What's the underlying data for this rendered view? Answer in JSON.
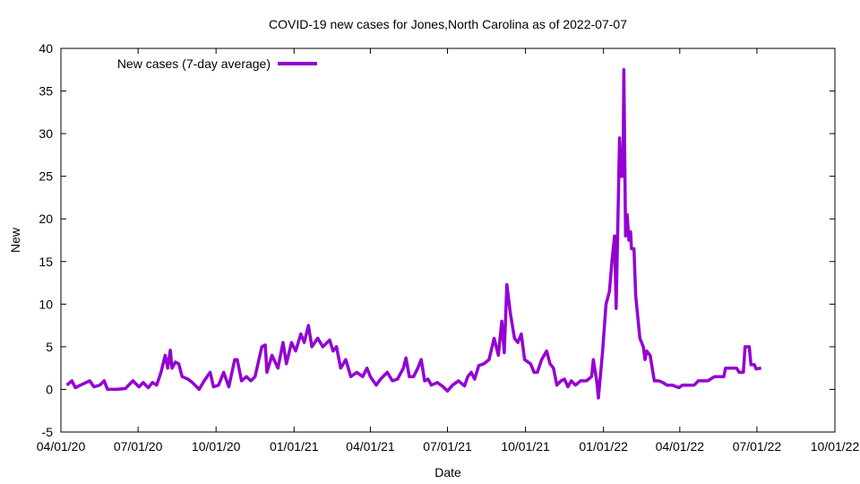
{
  "chart_data": {
    "type": "line",
    "title": "COVID-19 new cases for Jones,North Carolina as of 2022-07-07",
    "xlabel": "Date",
    "ylabel": "New",
    "x_unit": "days since 2020-04-01",
    "xlim": [
      0,
      913
    ],
    "ylim": [
      -5,
      40
    ],
    "yticks": [
      -5,
      0,
      5,
      10,
      15,
      20,
      25,
      30,
      35,
      40
    ],
    "xticks": [
      {
        "day": 0,
        "label": "04/01/20"
      },
      {
        "day": 91,
        "label": "07/01/20"
      },
      {
        "day": 183,
        "label": "10/01/20"
      },
      {
        "day": 275,
        "label": "01/01/21"
      },
      {
        "day": 365,
        "label": "04/01/21"
      },
      {
        "day": 456,
        "label": "07/01/21"
      },
      {
        "day": 548,
        "label": "10/01/21"
      },
      {
        "day": 640,
        "label": "01/01/22"
      },
      {
        "day": 730,
        "label": "04/01/22"
      },
      {
        "day": 821,
        "label": "07/01/22"
      },
      {
        "day": 913,
        "label": "10/01/22"
      }
    ],
    "grid": false,
    "legend_position": "top-left",
    "series": [
      {
        "name": "New cases (7-day average)",
        "color": "#9400d3",
        "x": [
          7,
          13,
          17,
          23,
          34,
          39,
          46,
          51,
          55,
          66,
          76,
          85,
          92,
          97,
          103,
          108,
          113,
          118,
          123,
          126,
          129,
          131,
          135,
          139,
          143,
          150,
          155,
          163,
          169,
          176,
          180,
          186,
          192,
          198,
          205,
          208,
          213,
          219,
          224,
          229,
          237,
          241,
          243,
          249,
          256,
          262,
          266,
          272,
          277,
          283,
          287,
          292,
          296,
          303,
          309,
          317,
          321,
          325,
          330,
          336,
          342,
          349,
          356,
          361,
          365,
          372,
          377,
          385,
          391,
          397,
          404,
          407,
          411,
          416,
          421,
          425,
          429,
          433,
          437,
          444,
          451,
          456,
          462,
          469,
          476,
          480,
          484,
          488,
          493,
          499,
          505,
          511,
          516,
          520,
          523,
          526,
          530,
          535,
          539,
          543,
          547,
          554,
          558,
          562,
          567,
          573,
          577,
          581,
          585,
          590,
          594,
          598,
          602,
          607,
          613,
          620,
          626,
          628,
          632,
          634,
          639,
          643,
          647,
          650,
          653,
          655,
          659,
          661,
          663,
          664,
          666,
          668,
          670,
          672,
          673,
          676,
          678,
          683,
          687,
          689,
          691,
          695,
          700,
          705,
          710,
          715,
          721,
          729,
          733,
          742,
          747,
          752,
          763,
          771,
          782,
          784,
          797,
          800,
          805,
          807,
          812,
          814,
          818,
          820,
          826
        ],
        "y": [
          0.5,
          1.0,
          0.2,
          0.5,
          1.0,
          0.3,
          0.5,
          1.0,
          0,
          0,
          0.1,
          1.0,
          0.3,
          0.8,
          0.2,
          0.8,
          0.5,
          2,
          4,
          2.5,
          4.6,
          2.5,
          3.2,
          3,
          1.5,
          1.2,
          0.8,
          0,
          1,
          2,
          0.3,
          0.5,
          2,
          0.3,
          3.5,
          3.5,
          1.0,
          1.5,
          1.0,
          1.5,
          5,
          5.2,
          2.0,
          4,
          2.5,
          5.5,
          3,
          5.5,
          4.5,
          6.5,
          5.5,
          7.5,
          5,
          6,
          5,
          5.8,
          4.5,
          5,
          2.5,
          3.5,
          1.5,
          2,
          1.5,
          2.5,
          1.5,
          0.5,
          1.2,
          2,
          1.0,
          1.2,
          2.5,
          3.7,
          1.5,
          1.5,
          2.5,
          3.5,
          1,
          1.2,
          0.5,
          0.8,
          0.3,
          -0.2,
          0.5,
          1,
          0.4,
          1.5,
          2,
          1.2,
          2.8,
          3,
          3.5,
          6,
          4,
          8,
          4.3,
          12.3,
          9,
          6,
          5.5,
          6.5,
          3.5,
          3,
          2,
          2,
          3.5,
          4.5,
          3,
          2.5,
          0.5,
          1,
          1.2,
          0.3,
          1,
          0.5,
          1,
          1,
          1.5,
          3.5,
          1,
          -1.0,
          4.5,
          10,
          11.5,
          15,
          18,
          9.5,
          29.5,
          25,
          25,
          37.5,
          18,
          20.5,
          17.5,
          18.5,
          16.5,
          16.5,
          11,
          6,
          5,
          3.5,
          4.5,
          4,
          1,
          1,
          0.8,
          0.5,
          0.5,
          0.2,
          0.5,
          0.5,
          0.5,
          1,
          1,
          1.5,
          1.5,
          2.5,
          2.5,
          2,
          2,
          5,
          5,
          2.9,
          2.9,
          2.4,
          2.5
        ]
      }
    ]
  }
}
